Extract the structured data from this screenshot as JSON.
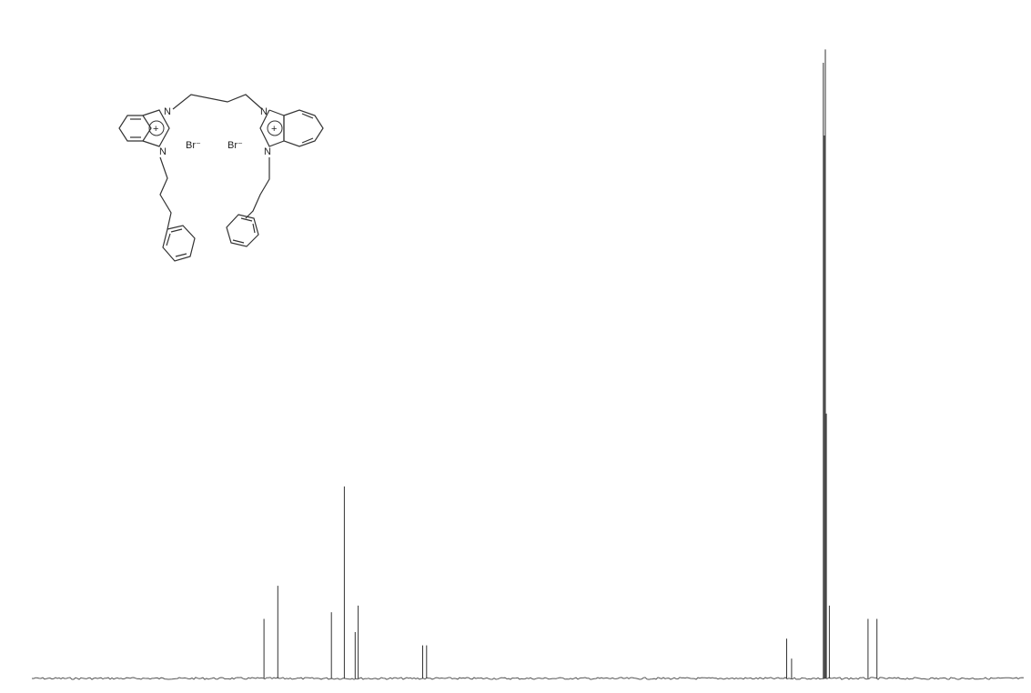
{
  "structure": {
    "atom_labels": {
      "n1": "N",
      "n2": "N",
      "n3": "N",
      "n4": "N",
      "plus_left": "+",
      "plus_right": "+",
      "br_left": "Br⁻",
      "br_right": "Br⁻"
    }
  },
  "chart_data": {
    "type": "line",
    "title": "",
    "xlabel": "",
    "ylabel": "",
    "x_axis_printed": false,
    "baseline_level": 0.0,
    "peaks": [
      {
        "position": 0.234,
        "height": 0.09
      },
      {
        "position": 0.248,
        "height": 0.14
      },
      {
        "position": 0.302,
        "height": 0.1
      },
      {
        "position": 0.315,
        "height": 0.29
      },
      {
        "position": 0.326,
        "height": 0.07
      },
      {
        "position": 0.329,
        "height": 0.11
      },
      {
        "position": 0.394,
        "height": 0.05
      },
      {
        "position": 0.398,
        "height": 0.05
      },
      {
        "position": 0.761,
        "height": 0.06
      },
      {
        "position": 0.766,
        "height": 0.03
      },
      {
        "position": 0.798,
        "height": 0.93
      },
      {
        "position": 0.799,
        "height": 0.82
      },
      {
        "position": 0.8,
        "height": 0.95
      },
      {
        "position": 0.801,
        "height": 0.4
      },
      {
        "position": 0.804,
        "height": 0.11
      },
      {
        "position": 0.843,
        "height": 0.09
      },
      {
        "position": 0.852,
        "height": 0.09
      }
    ]
  }
}
